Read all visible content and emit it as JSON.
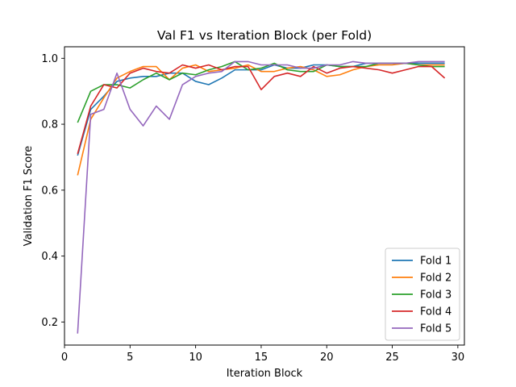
{
  "chart_data": {
    "type": "line",
    "title": "Val F1 vs Iteration Block (per Fold)",
    "xlabel": "Iteration Block",
    "ylabel": "Validation F1 Score",
    "xlim": [
      0,
      30.5
    ],
    "ylim": [
      0.13,
      1.035
    ],
    "xticks": [
      0,
      5,
      10,
      15,
      20,
      25,
      30
    ],
    "yticks": [
      0.2,
      0.4,
      0.6,
      0.8,
      1.0
    ],
    "grid": false,
    "legend_position": "lower right",
    "x": [
      1,
      2,
      3,
      4,
      5,
      6,
      7,
      8,
      9,
      10,
      11,
      12,
      13,
      14,
      15,
      16,
      17,
      18,
      19,
      20,
      21,
      22,
      23,
      24,
      25,
      26,
      27,
      28,
      29
    ],
    "series": [
      {
        "name": "Fold 1",
        "color": "#1f77b4",
        "values": [
          0.705,
          0.845,
          0.885,
          0.93,
          0.94,
          0.945,
          0.945,
          0.955,
          0.955,
          0.93,
          0.92,
          0.94,
          0.965,
          0.965,
          0.965,
          0.98,
          0.97,
          0.97,
          0.98,
          0.98,
          0.975,
          0.975,
          0.985,
          0.985,
          0.985,
          0.985,
          0.985,
          0.985,
          0.985
        ]
      },
      {
        "name": "Fold 2",
        "color": "#ff7f0e",
        "values": [
          0.645,
          0.815,
          0.88,
          0.94,
          0.96,
          0.975,
          0.975,
          0.935,
          0.97,
          0.98,
          0.96,
          0.965,
          0.97,
          0.98,
          0.96,
          0.96,
          0.97,
          0.975,
          0.965,
          0.945,
          0.95,
          0.965,
          0.975,
          0.98,
          0.98,
          0.985,
          0.98,
          0.98,
          0.98
        ]
      },
      {
        "name": "Fold 3",
        "color": "#2ca02c",
        "values": [
          0.805,
          0.9,
          0.92,
          0.92,
          0.91,
          0.935,
          0.955,
          0.935,
          0.955,
          0.95,
          0.965,
          0.975,
          0.99,
          0.965,
          0.97,
          0.985,
          0.965,
          0.96,
          0.96,
          0.98,
          0.975,
          0.975,
          0.975,
          0.985,
          0.985,
          0.985,
          0.98,
          0.975,
          0.975
        ]
      },
      {
        "name": "Fold 4",
        "color": "#d62728",
        "values": [
          0.71,
          0.855,
          0.92,
          0.91,
          0.955,
          0.97,
          0.96,
          0.955,
          0.98,
          0.97,
          0.98,
          0.965,
          0.975,
          0.975,
          0.905,
          0.945,
          0.955,
          0.945,
          0.975,
          0.955,
          0.97,
          0.975,
          0.97,
          0.965,
          0.955,
          0.965,
          0.975,
          0.975,
          0.94
        ]
      },
      {
        "name": "Fold 5",
        "color": "#9467bd",
        "values": [
          0.165,
          0.83,
          0.845,
          0.955,
          0.845,
          0.795,
          0.855,
          0.815,
          0.92,
          0.945,
          0.955,
          0.96,
          0.99,
          0.99,
          0.98,
          0.98,
          0.98,
          0.97,
          0.97,
          0.98,
          0.98,
          0.99,
          0.985,
          0.985,
          0.985,
          0.985,
          0.99,
          0.99,
          0.99
        ]
      }
    ]
  }
}
